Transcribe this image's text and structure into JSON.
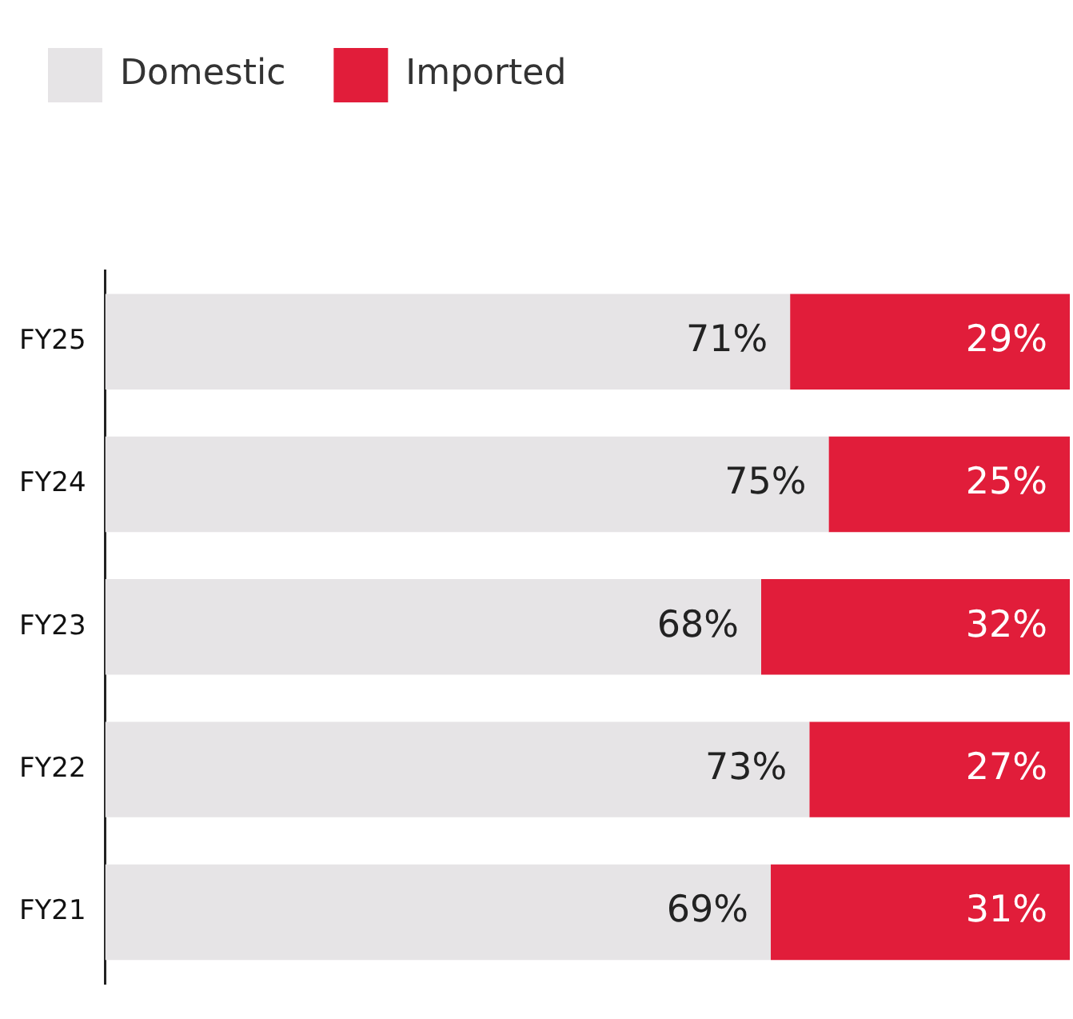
{
  "chart_data": {
    "type": "bar",
    "orientation": "horizontal",
    "stacked": true,
    "legend": "top left",
    "grid": false,
    "categories": [
      "FY25",
      "FY24",
      "FY23",
      "FY22",
      "FY21"
    ],
    "series": [
      {
        "name": "Domestic",
        "color": "#e6e4e6",
        "values": [
          71,
          75,
          68,
          73,
          69
        ],
        "value_labels": [
          "71%",
          "75%",
          "68%",
          "73%",
          "69%"
        ]
      },
      {
        "name": "Imported",
        "color": "#e11d3a",
        "values": [
          29,
          25,
          32,
          27,
          31
        ],
        "value_labels": [
          "29%",
          "25%",
          "32%",
          "27%",
          "31%"
        ]
      }
    ]
  }
}
